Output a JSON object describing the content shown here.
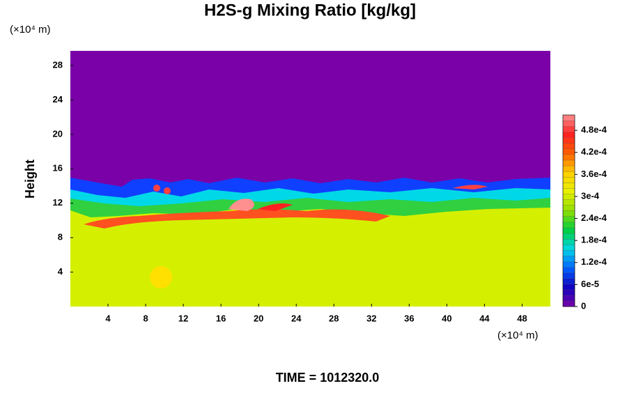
{
  "chart_data": {
    "type": "contour",
    "title": "H2S-g Mixing Ratio [kg/kg]",
    "y_label": "Height",
    "x_unit": "(×10⁴ m)",
    "y_unit": "(×10⁴ m)",
    "footer": "TIME = 1012320.0",
    "xlim": [
      0,
      51
    ],
    "xticks": [
      4,
      8,
      12,
      16,
      20,
      24,
      28,
      32,
      36,
      40,
      44,
      48
    ],
    "ylim": [
      0,
      29.7
    ],
    "yticks": [
      4,
      8,
      12,
      16,
      20,
      24,
      28
    ],
    "clim": [
      0,
      0.000522
    ],
    "cticks": [
      0,
      {
        "value": 6e-05,
        "label": "6e-5"
      },
      {
        "value": 0.00012,
        "label": "1.2e-4"
      },
      {
        "value": 0.00018,
        "label": "1.8e-4"
      },
      {
        "value": 0.00024,
        "label": "2.4e-4"
      },
      {
        "value": 0.0003,
        "label": "3e-4"
      },
      {
        "value": 0.00036,
        "label": "3.6e-4"
      },
      {
        "value": 0.00042,
        "label": "4.2e-4"
      },
      {
        "value": 0.00048,
        "label": "4.8e-4"
      }
    ],
    "colormap": [
      "#7a00a8",
      "#1000c0",
      "#0060ff",
      "#00d8e8",
      "#00d040",
      "#90e000",
      "#e8f000",
      "#ffd000",
      "#ff6000",
      "#ff2020",
      "#ff9090"
    ]
  }
}
